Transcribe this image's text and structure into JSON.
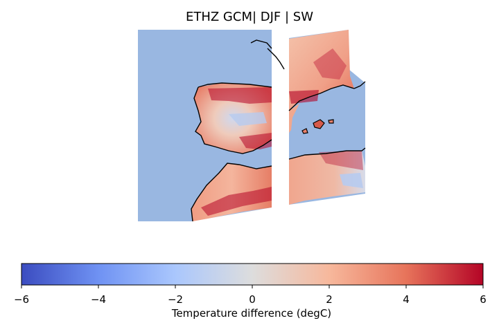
{
  "title": "ETHZ GCM| DJF | SW",
  "colorbar": {
    "label": "Temperature difference (degC)",
    "ticks": [
      "−6",
      "−4",
      "−2",
      "0",
      "2",
      "4",
      "6"
    ],
    "range": [
      -6,
      6
    ],
    "colormap": "coolwarm",
    "colors": [
      "#3b4cc0",
      "#6f92f3",
      "#aac7fd",
      "#dddddd",
      "#f7b89c",
      "#e7745b",
      "#b40426"
    ]
  },
  "map": {
    "region": "Iberian Peninsula, Western Mediterranean and North Africa",
    "ocean_color": "#99b7e1",
    "coastline_color": "#000000"
  }
}
